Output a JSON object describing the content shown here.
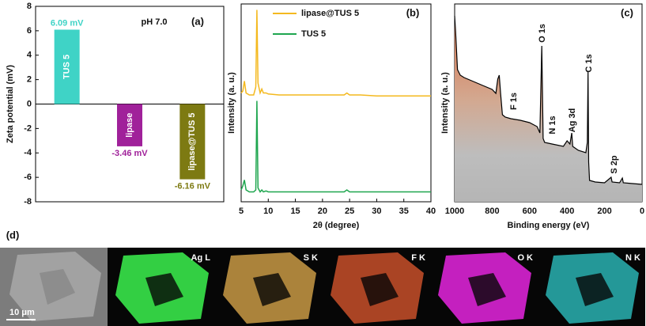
{
  "chart_data": [
    {
      "type": "bar",
      "ylabel": "Zeta potential (mV)",
      "categories": [
        "TUS 5",
        "lipase",
        "lipase@TUS 5"
      ],
      "values": [
        6.09,
        -3.46,
        -6.16
      ],
      "value_labels": [
        "6.09 mV",
        "-3.46 mV",
        "-6.16 mV"
      ],
      "colors": [
        "#3fd3c6",
        "#a0219a",
        "#7d7a12"
      ],
      "ylim": [
        -8,
        8
      ],
      "yticks": [
        -8,
        -6,
        -4,
        -2,
        0,
        2,
        4,
        6,
        8
      ],
      "annotations": [
        "pH 7.0",
        "(a)"
      ]
    },
    {
      "type": "line",
      "xlabel": "2θ (degree)",
      "ylabel": "Intensity (a. u.)",
      "x": [
        5,
        5.3,
        5.6,
        5.9,
        6.5,
        7.3,
        7.7,
        7.9,
        8.1,
        8.5,
        8.8,
        9.1,
        9.6,
        10,
        12,
        15,
        18,
        20,
        22,
        24,
        24.5,
        25,
        27,
        30,
        35,
        40
      ],
      "series": [
        {
          "name": "lipase@TUS 5",
          "color": "#f4b91f",
          "values": [
            55,
            56,
            61,
            55,
            54,
            54,
            58,
            97,
            60,
            55,
            57,
            55,
            55,
            54.5,
            54,
            54,
            54,
            54,
            54,
            54,
            55,
            54,
            54,
            53.5,
            53.5,
            53.5
          ]
        },
        {
          "name": "TUS 5",
          "color": "#1fa64f",
          "values": [
            6,
            8,
            11,
            6,
            5,
            5,
            6,
            51,
            7,
            5,
            6,
            5,
            5.5,
            5,
            5,
            5,
            5,
            5,
            5,
            5,
            6,
            5,
            5,
            5,
            5,
            5
          ]
        }
      ],
      "xlim": [
        5,
        40
      ],
      "xticks": [
        5,
        10,
        15,
        20,
        25,
        30,
        35,
        40
      ],
      "ylim": [
        0,
        100
      ],
      "legend": "upper right",
      "annotations": [
        "(b)"
      ]
    },
    {
      "type": "area",
      "xlabel": "Binding energy (eV)",
      "ylabel": "Intensity (a. u.)",
      "x": [
        1000,
        995,
        985,
        970,
        950,
        900,
        850,
        800,
        780,
        770,
        762,
        755,
        745,
        730,
        700,
        650,
        600,
        560,
        545,
        535,
        528,
        520,
        480,
        420,
        400,
        385,
        375,
        370,
        340,
        300,
        292,
        288,
        285,
        280,
        250,
        200,
        165,
        160,
        120,
        105,
        100,
        50,
        0
      ],
      "values": [
        94,
        86,
        66.8,
        64,
        62.8,
        60.8,
        58.8,
        56.8,
        54.8,
        62,
        64,
        54.8,
        44,
        42.8,
        42,
        41.2,
        40,
        38,
        34.8,
        78.8,
        32,
        30,
        29.2,
        28,
        30.8,
        29.2,
        34.8,
        28,
        26,
        24.8,
        30,
        66,
        20,
        10.8,
        10,
        9.6,
        12.4,
        10,
        9.6,
        12,
        9.6,
        9.2,
        8.8
      ],
      "xlim": [
        1000,
        0
      ],
      "xticks": [
        1000,
        800,
        600,
        400,
        200,
        0
      ],
      "ylim": [
        0,
        100
      ],
      "annotations": [
        "(c)",
        "O 1s",
        "C 1s",
        "F 1s",
        "N 1s",
        "Ag 3d",
        "S 2p"
      ]
    }
  ],
  "panel_d": {
    "label": "(d)",
    "maps": [
      "Ag L",
      "S K",
      "F K",
      "O K",
      "N K"
    ],
    "scale_bar": "10 μm"
  }
}
